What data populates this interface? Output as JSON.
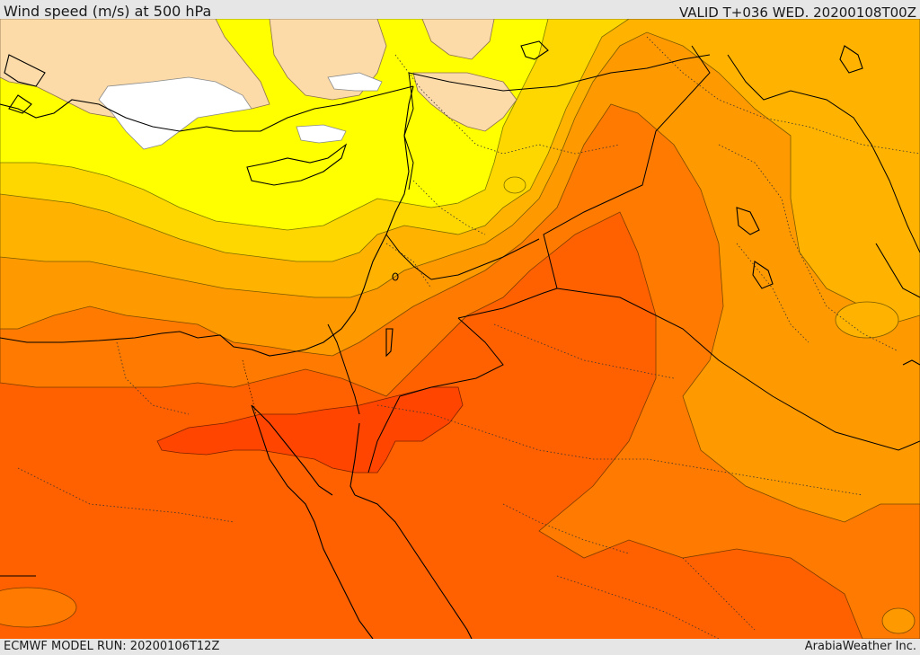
{
  "header": {
    "title": "Wind speed (m/s) at 500 hPa",
    "valid": "VALID T+036 WED. 20200108T00Z"
  },
  "footer": {
    "model_run": "ECMWF MODEL RUN: 20200106T12Z",
    "credit": "ArabiaWeather Inc."
  },
  "palette": {
    "white": "#ffffff",
    "light_tan": "#fddba8",
    "yellow": "#ffff00",
    "gold": "#ffd700",
    "amber": "#ffb300",
    "orange": "#ff9900",
    "dark_orange": "#ff7a00",
    "red_orange": "#ff6000",
    "red": "#ff4500",
    "coastline": "#000000",
    "contour": "#555555"
  }
}
